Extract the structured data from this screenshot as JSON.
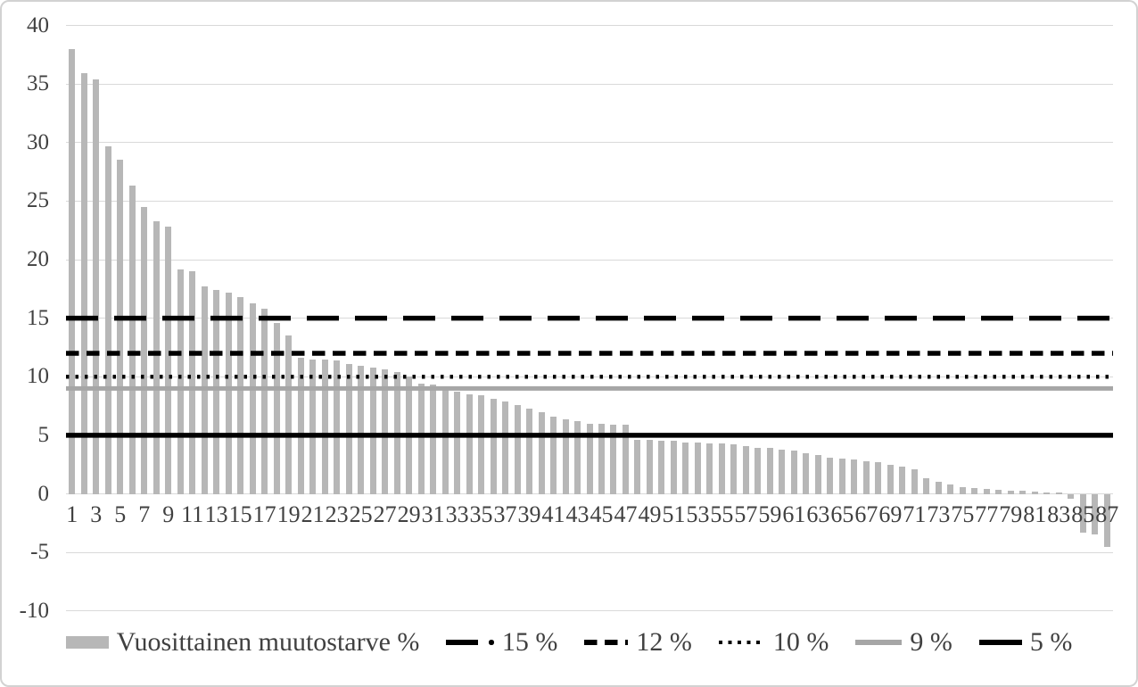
{
  "chart_data": {
    "type": "bar",
    "title": "",
    "series_name": "Vuosittainen muutostarve %",
    "bar_color": "#b7b7b7",
    "values": [
      38.0,
      35.9,
      35.4,
      29.7,
      28.5,
      26.3,
      24.5,
      23.3,
      22.8,
      19.2,
      19.0,
      17.7,
      17.4,
      17.2,
      16.8,
      16.3,
      15.8,
      14.6,
      13.5,
      11.6,
      11.5,
      11.5,
      11.4,
      11.1,
      10.9,
      10.8,
      10.6,
      10.4,
      10.0,
      9.4,
      9.3,
      9.2,
      8.7,
      8.5,
      8.4,
      8.1,
      7.9,
      7.6,
      7.3,
      7.0,
      6.6,
      6.4,
      6.2,
      6.0,
      6.0,
      5.9,
      5.9,
      4.6,
      4.6,
      4.5,
      4.5,
      4.4,
      4.4,
      4.3,
      4.3,
      4.2,
      4.1,
      3.9,
      3.9,
      3.8,
      3.7,
      3.5,
      3.3,
      3.1,
      3.0,
      2.9,
      2.8,
      2.7,
      2.5,
      2.3,
      2.1,
      1.3,
      1.05,
      0.8,
      0.6,
      0.5,
      0.4,
      0.35,
      0.3,
      0.25,
      0.2,
      0.15,
      0.1,
      -0.4,
      -3.3,
      -3.5,
      -4.5
    ],
    "ref_lines": [
      {
        "label": "15 %",
        "value": 15,
        "style": "long-dash",
        "color": "#000000",
        "stroke_width": 5.5,
        "dash": "36 18"
      },
      {
        "label": "12 %",
        "value": 12,
        "style": "dash",
        "color": "#000000",
        "stroke_width": 5.5,
        "dash": "14.5 8.5"
      },
      {
        "label": "10 %",
        "value": 10,
        "style": "dot",
        "color": "#000000",
        "stroke_width": 4.5,
        "dash": "3.5 7"
      },
      {
        "label": "9 %",
        "value": 9,
        "style": "solid",
        "color": "#a6a6a6",
        "stroke_width": 5,
        "dash": ""
      },
      {
        "label": "5 %",
        "value": 5,
        "style": "solid",
        "color": "#000000",
        "stroke_width": 5.5,
        "dash": ""
      }
    ],
    "y_ticks": [
      40,
      35,
      30,
      25,
      20,
      15,
      10,
      5,
      0,
      -5,
      -10
    ],
    "x_tick_labels": [
      1,
      3,
      5,
      7,
      9,
      11,
      13,
      15,
      17,
      19,
      21,
      23,
      25,
      27,
      29,
      31,
      33,
      35,
      37,
      39,
      41,
      43,
      45,
      47,
      49,
      51,
      53,
      55,
      57,
      59,
      61,
      63,
      65,
      67,
      69,
      71,
      73,
      75,
      77,
      79,
      81,
      83,
      85,
      87
    ],
    "ylim": [
      -10,
      40
    ],
    "grid": true,
    "gridline_color": "#d9d9d9",
    "text_color": "#404040",
    "legend_position": "bottom",
    "legend": [
      {
        "label": "Vuosittainen muutostarve %",
        "marker": "bar-swatch",
        "color": "#b7b7b7"
      },
      {
        "label": "15 %",
        "marker": "long-dash-dot",
        "color": "#000000"
      },
      {
        "label": "12 %",
        "marker": "dash",
        "color": "#000000"
      },
      {
        "label": "10 %",
        "marker": "dot",
        "color": "#000000"
      },
      {
        "label": "9 %",
        "marker": "solid",
        "color": "#a6a6a6"
      },
      {
        "label": "5 %",
        "marker": "solid",
        "color": "#000000"
      }
    ]
  }
}
